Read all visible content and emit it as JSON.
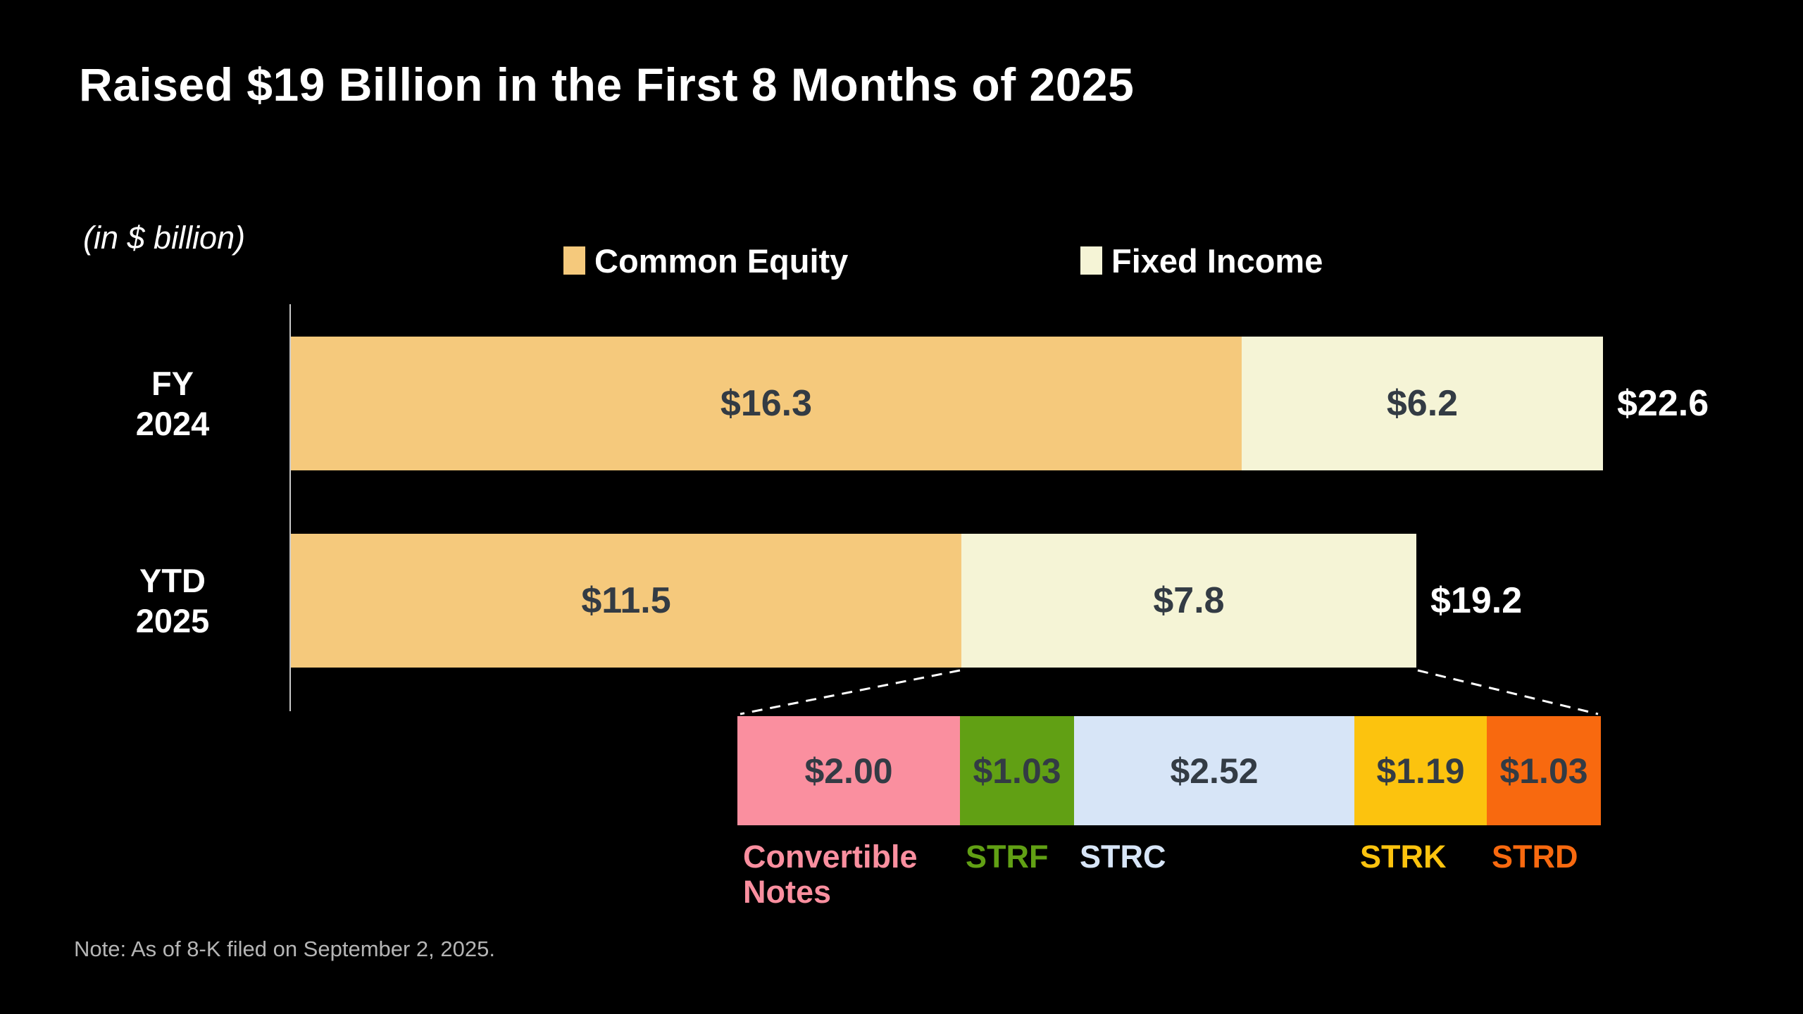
{
  "header": {
    "title": "Raised $19 Billion in the First 8 Months of 2025"
  },
  "chart": {
    "units_label": "(in $ billion)",
    "note": "Note: As of 8-K filed on September 2, 2025."
  },
  "chart_data": {
    "type": "bar",
    "orientation": "horizontal",
    "stacked": true,
    "title": "Raised $19 Billion in the First 8 Months of 2025",
    "units": "in $ billion",
    "background": "#000000",
    "grid": false,
    "legend_position": "top",
    "categories": [
      "FY 2024",
      "YTD 2025"
    ],
    "series": [
      {
        "name": "Common Equity",
        "color": "#F5C97C",
        "values": [
          16.3,
          11.5
        ],
        "labels": [
          "$16.3",
          "$11.5"
        ]
      },
      {
        "name": "Fixed Income",
        "color": "#F5F4D6",
        "values": [
          6.2,
          7.8
        ],
        "labels": [
          "$6.2",
          "$7.8"
        ]
      }
    ],
    "totals": [
      22.6,
      19.2
    ],
    "total_labels": [
      "$22.6",
      "$19.2"
    ],
    "value_text_color": "#333B44",
    "breakdown": {
      "of": "Fixed Income YTD 2025",
      "segments": [
        {
          "label": "Convertible Notes",
          "value": 2.0,
          "value_label": "$2.00",
          "color": "#FA8F9F"
        },
        {
          "label": "STRF",
          "value": 1.03,
          "value_label": "$1.03",
          "color": "#61A014"
        },
        {
          "label": "STRC",
          "value": 2.52,
          "value_label": "$2.52",
          "color": "#D7E5F7"
        },
        {
          "label": "STRK",
          "value": 1.19,
          "value_label": "$1.19",
          "color": "#FCC30E"
        },
        {
          "label": "STRD",
          "value": 1.03,
          "value_label": "$1.03",
          "color": "#F8690F"
        }
      ]
    },
    "note": "Note: As of 8-K filed on September 2, 2025."
  }
}
